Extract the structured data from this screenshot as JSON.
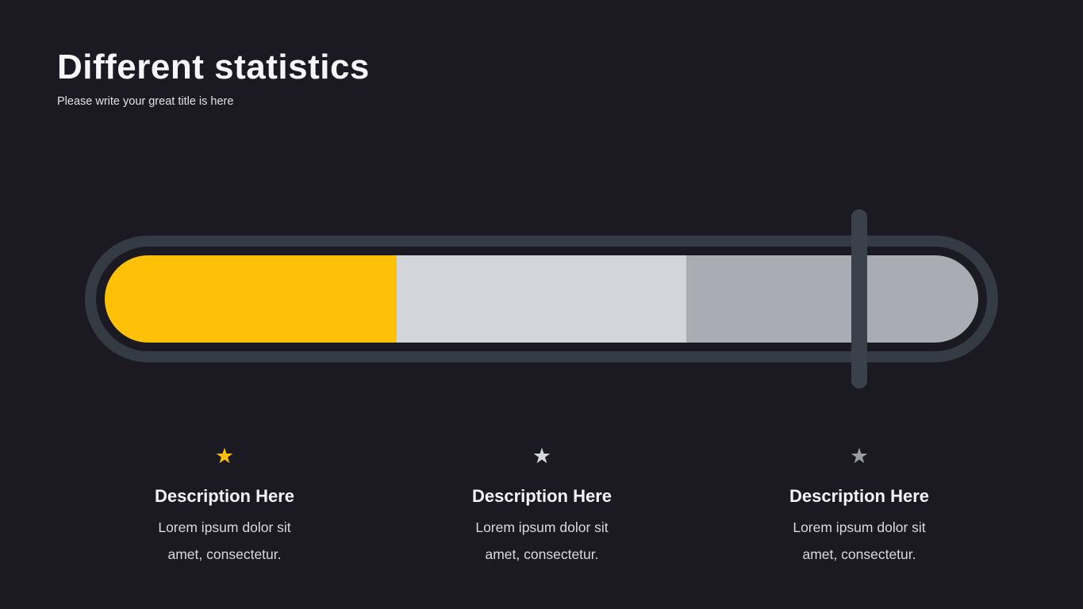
{
  "header": {
    "title": "Different statistics",
    "subtitle": "Please write your great title is here"
  },
  "progress_bar": {
    "track_color": "#343B45",
    "handle_color": "#3A414A",
    "handle_position_pct": 84.8,
    "segments": [
      {
        "label": "segment-yellow",
        "color": "#FEC107",
        "width_pct": 33.4
      },
      {
        "label": "segment-light-gray",
        "color": "#D3D5DA",
        "width_pct": 33.2
      },
      {
        "label": "segment-gray",
        "color": "#A9ACB4",
        "width_pct": 33.4
      }
    ]
  },
  "columns": [
    {
      "star_color": "#FEC107",
      "heading": "Description Here",
      "body": "Lorem ipsum dolor sit amet, consectetur."
    },
    {
      "star_color": "#D6D8DC",
      "heading": "Description Here",
      "body": "Lorem ipsum dolor sit amet, consectetur."
    },
    {
      "star_color": "#9A9DA5",
      "heading": "Description Here",
      "body": "Lorem ipsum dolor sit amet, consectetur."
    }
  ],
  "colors": {
    "background": "#1B1A22",
    "accent": "#FEC107"
  }
}
